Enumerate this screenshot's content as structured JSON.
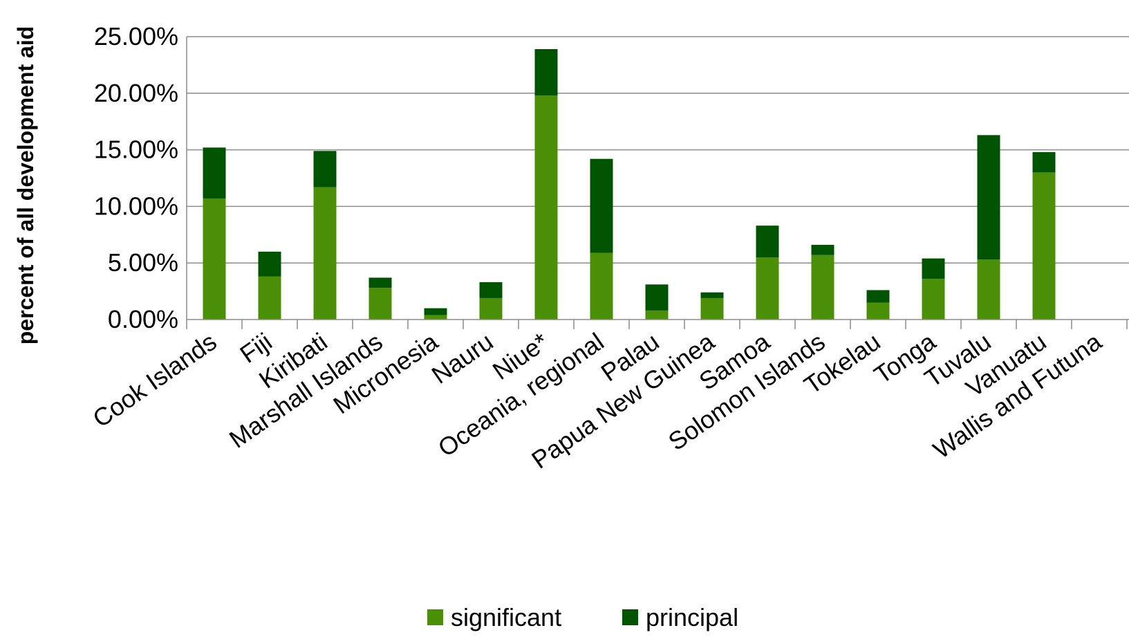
{
  "chart_data": {
    "type": "bar",
    "stacked": true,
    "title": "",
    "xlabel": "",
    "ylabel": "percent of all development aid",
    "ylim": [
      0,
      25
    ],
    "yticks": [
      "0.00%",
      "5.00%",
      "10.00%",
      "15.00%",
      "20.00%",
      "25.00%"
    ],
    "ytick_values": [
      0,
      5,
      10,
      15,
      20,
      25
    ],
    "grid": "horizontal",
    "legend_position": "bottom",
    "categories": [
      "Cook Islands",
      "Fiji",
      "Kiribati",
      "Marshall Islands",
      "Micronesia",
      "Nauru",
      "Niue*",
      "Oceania, regional",
      "Palau",
      "Papua New Guinea",
      "Samoa",
      "Solomon Islands",
      "Tokelau",
      "Tonga",
      "Tuvalu",
      "Vanuatu",
      "Wallis and Futuna"
    ],
    "series": [
      {
        "name": "significant",
        "color": "#4a8f06",
        "values": [
          10.7,
          3.8,
          11.7,
          2.8,
          0.4,
          1.9,
          19.8,
          5.9,
          0.8,
          1.9,
          5.5,
          5.7,
          1.5,
          3.6,
          5.3,
          13.0,
          0
        ]
      },
      {
        "name": "principal",
        "color": "#005300",
        "values": [
          4.5,
          2.2,
          3.2,
          0.9,
          0.6,
          1.4,
          4.1,
          8.3,
          2.3,
          0.5,
          2.8,
          0.9,
          1.1,
          1.8,
          11.0,
          1.8,
          0
        ]
      }
    ]
  }
}
